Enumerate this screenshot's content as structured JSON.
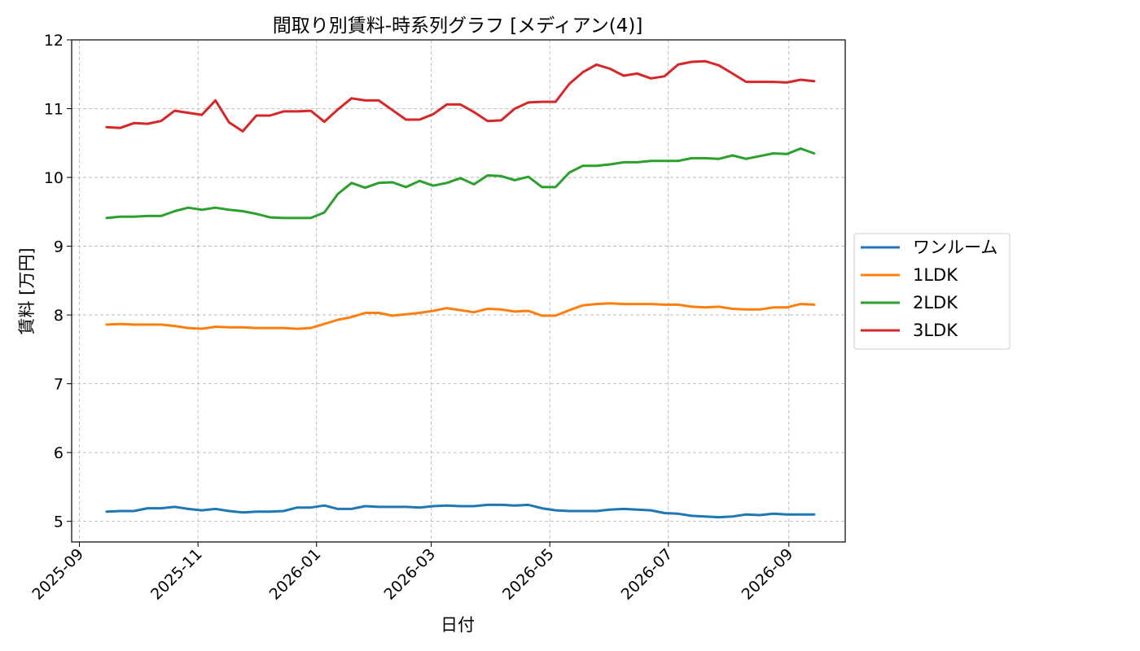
{
  "chart_data": {
    "type": "line",
    "title": "間取り別賃料-時系列グラフ [メディアン(4)]",
    "xlabel": "日付",
    "ylabel": "賃料 [万円]",
    "ylim": [
      4.7,
      12.0
    ],
    "xlim": [
      "2025-08-28",
      "2026-09-30"
    ],
    "yticks": [
      5,
      6,
      7,
      8,
      9,
      10,
      11,
      12
    ],
    "xticks": [
      "2025-09",
      "2025-11",
      "2026-01",
      "2026-03",
      "2026-05",
      "2026-07",
      "2026-09"
    ],
    "grid": true,
    "legend_position": "center-right",
    "x": [
      "2025-09-15",
      "2025-09-22",
      "2025-09-29",
      "2025-10-06",
      "2025-10-13",
      "2025-10-20",
      "2025-10-27",
      "2025-11-03",
      "2025-11-10",
      "2025-11-17",
      "2025-11-24",
      "2025-12-01",
      "2025-12-08",
      "2025-12-15",
      "2025-12-22",
      "2025-12-29",
      "2026-01-05",
      "2026-01-12",
      "2026-01-19",
      "2026-01-26",
      "2026-02-02",
      "2026-02-09",
      "2026-02-16",
      "2026-02-23",
      "2026-03-02",
      "2026-03-09",
      "2026-03-16",
      "2026-03-23",
      "2026-03-30",
      "2026-04-06",
      "2026-04-13",
      "2026-04-20",
      "2026-04-27",
      "2026-05-04",
      "2026-05-11",
      "2026-05-18",
      "2026-05-25",
      "2026-06-01",
      "2026-06-08",
      "2026-06-15",
      "2026-06-22",
      "2026-06-29",
      "2026-07-06",
      "2026-07-13",
      "2026-07-20",
      "2026-07-27",
      "2026-08-03",
      "2026-08-10",
      "2026-08-17",
      "2026-08-24",
      "2026-08-31",
      "2026-09-07",
      "2026-09-14"
    ],
    "series": [
      {
        "name": "ワンルーム",
        "color": "#1f77b4",
        "values": [
          5.14,
          5.15,
          5.15,
          5.19,
          5.19,
          5.21,
          5.18,
          5.16,
          5.18,
          5.15,
          5.13,
          5.14,
          5.14,
          5.15,
          5.2,
          5.2,
          5.23,
          5.18,
          5.18,
          5.22,
          5.21,
          5.21,
          5.21,
          5.2,
          5.22,
          5.23,
          5.22,
          5.22,
          5.24,
          5.24,
          5.23,
          5.24,
          5.19,
          5.16,
          5.15,
          5.15,
          5.15,
          5.17,
          5.18,
          5.17,
          5.16,
          5.12,
          5.11,
          5.08,
          5.07,
          5.06,
          5.07,
          5.1,
          5.09,
          5.11,
          5.1,
          5.1,
          5.1
        ]
      },
      {
        "name": "1LDK",
        "color": "#ff7f0e",
        "values": [
          7.86,
          7.87,
          7.86,
          7.86,
          7.86,
          7.84,
          7.81,
          7.8,
          7.83,
          7.82,
          7.82,
          7.81,
          7.81,
          7.81,
          7.8,
          7.81,
          7.87,
          7.93,
          7.97,
          8.03,
          8.03,
          7.99,
          8.01,
          8.03,
          8.06,
          8.1,
          8.07,
          8.04,
          8.09,
          8.08,
          8.05,
          8.06,
          7.99,
          7.99,
          8.07,
          8.14,
          8.16,
          8.17,
          8.16,
          8.16,
          8.16,
          8.15,
          8.15,
          8.12,
          8.11,
          8.12,
          8.09,
          8.08,
          8.08,
          8.11,
          8.11,
          8.16,
          8.15
        ]
      },
      {
        "name": "2LDK",
        "color": "#2ca02c",
        "values": [
          9.41,
          9.43,
          9.43,
          9.44,
          9.44,
          9.51,
          9.56,
          9.53,
          9.56,
          9.53,
          9.51,
          9.47,
          9.42,
          9.41,
          9.41,
          9.41,
          9.49,
          9.76,
          9.92,
          9.85,
          9.92,
          9.93,
          9.86,
          9.95,
          9.88,
          9.92,
          9.99,
          9.9,
          10.03,
          10.02,
          9.96,
          10.01,
          9.86,
          9.86,
          10.07,
          10.17,
          10.17,
          10.19,
          10.22,
          10.22,
          10.24,
          10.24,
          10.24,
          10.28,
          10.28,
          10.27,
          10.32,
          10.27,
          10.31,
          10.35,
          10.34,
          10.42,
          10.35
        ]
      },
      {
        "name": "3LDK",
        "color": "#d62728",
        "values": [
          10.73,
          10.72,
          10.79,
          10.78,
          10.82,
          10.97,
          10.94,
          10.91,
          11.12,
          10.8,
          10.67,
          10.9,
          10.9,
          10.96,
          10.96,
          10.97,
          10.81,
          10.99,
          11.15,
          11.12,
          11.12,
          10.98,
          10.84,
          10.84,
          10.92,
          11.06,
          11.06,
          10.95,
          10.82,
          10.83,
          11.0,
          11.09,
          11.1,
          11.1,
          11.36,
          11.53,
          11.64,
          11.58,
          11.48,
          11.51,
          11.44,
          11.47,
          11.64,
          11.68,
          11.69,
          11.63,
          11.51,
          11.39,
          11.39,
          11.39,
          11.38,
          11.42,
          11.4
        ]
      }
    ]
  }
}
